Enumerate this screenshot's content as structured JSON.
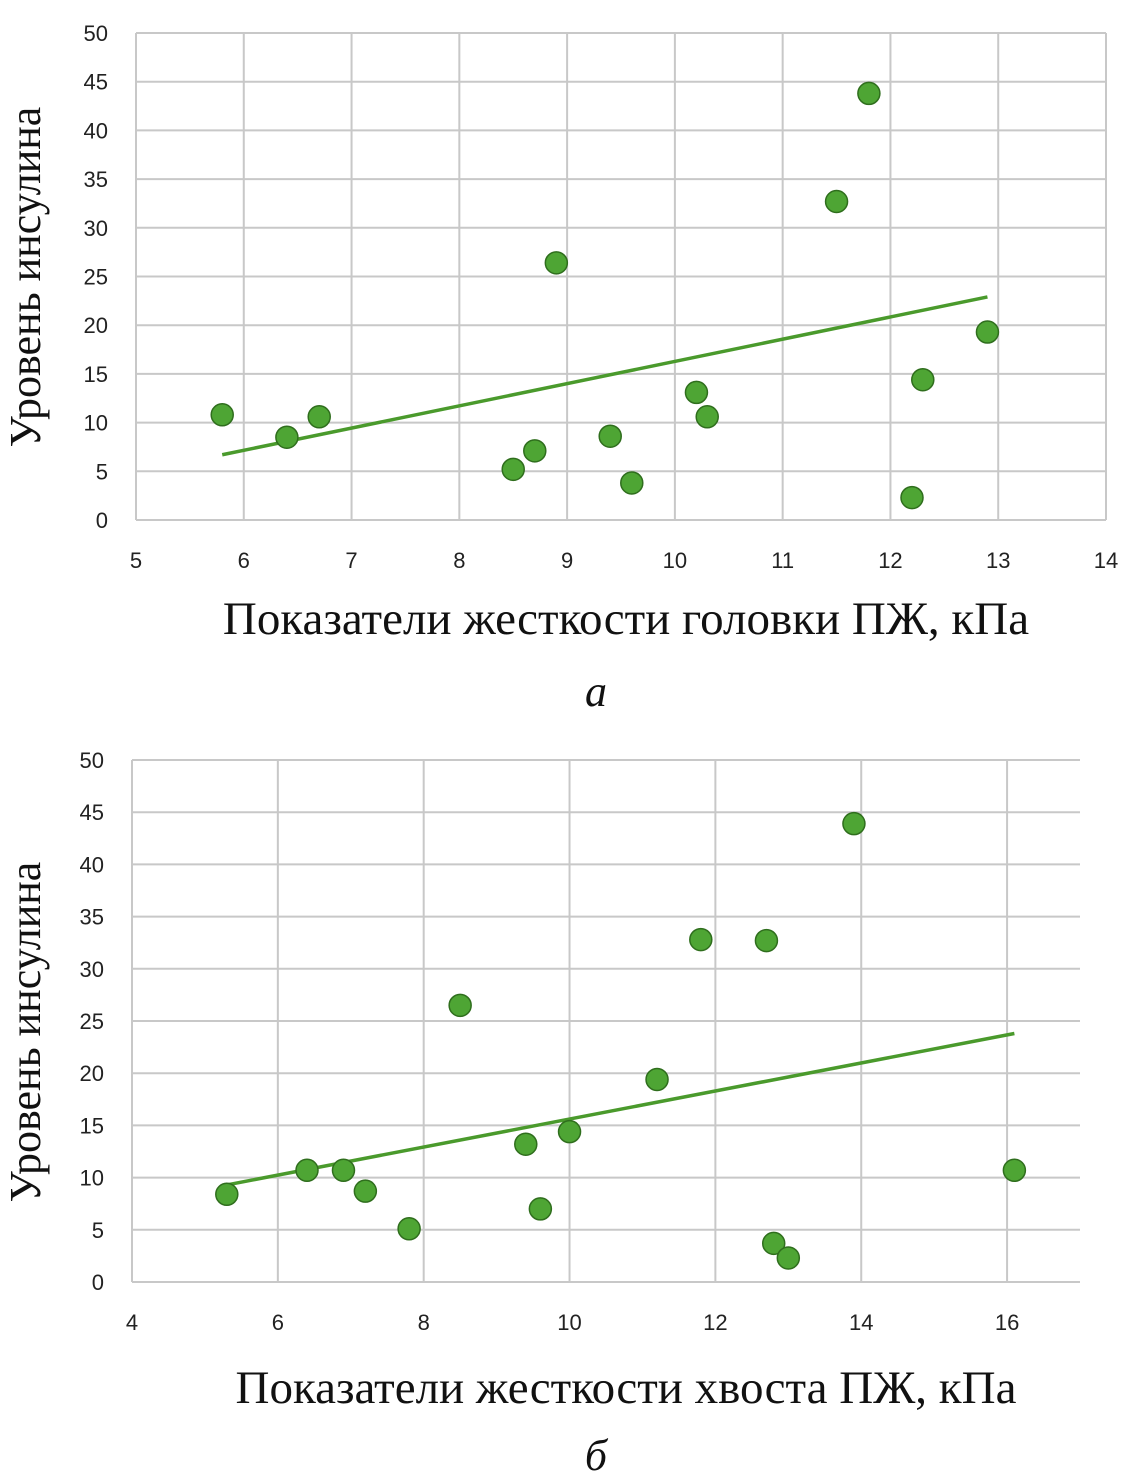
{
  "colors": {
    "point": "#4ea534",
    "point_edge": "#2f6e1d",
    "trend": "#4a9a2c",
    "grid": "#c8c8c8"
  },
  "chart_data": [
    {
      "type": "scatter",
      "panel_label": "a",
      "xlabel": "Показатели жесткости головки ПЖ, кПа",
      "ylabel": "Уровень инсулина",
      "xlim": [
        5,
        14
      ],
      "ylim": [
        0,
        50
      ],
      "xticks": [
        5,
        6,
        7,
        8,
        9,
        10,
        11,
        12,
        13,
        14
      ],
      "yticks": [
        0,
        5,
        10,
        15,
        20,
        25,
        30,
        35,
        40,
        45,
        50
      ],
      "grid": true,
      "points": [
        {
          "x": 5.8,
          "y": 10.8
        },
        {
          "x": 6.4,
          "y": 8.5
        },
        {
          "x": 6.7,
          "y": 10.6
        },
        {
          "x": 8.5,
          "y": 5.2
        },
        {
          "x": 8.7,
          "y": 7.1
        },
        {
          "x": 8.9,
          "y": 26.4
        },
        {
          "x": 9.4,
          "y": 8.6
        },
        {
          "x": 9.6,
          "y": 3.8
        },
        {
          "x": 10.2,
          "y": 13.1
        },
        {
          "x": 10.3,
          "y": 10.6
        },
        {
          "x": 11.5,
          "y": 32.7
        },
        {
          "x": 11.8,
          "y": 43.8
        },
        {
          "x": 12.2,
          "y": 2.3
        },
        {
          "x": 12.3,
          "y": 14.4
        },
        {
          "x": 12.9,
          "y": 19.3
        }
      ],
      "trendline": {
        "x": [
          5.8,
          12.9
        ],
        "y": [
          6.7,
          22.9
        ]
      }
    },
    {
      "type": "scatter",
      "panel_label": "б",
      "xlabel": "Показатели жесткости хвоста ПЖ, кПа",
      "ylabel": "Уровень инсулина",
      "xlim": [
        4,
        17
      ],
      "ylim": [
        0,
        50
      ],
      "xticks": [
        4,
        6,
        8,
        10,
        12,
        14,
        16
      ],
      "yticks": [
        0,
        5,
        10,
        15,
        20,
        25,
        30,
        35,
        40,
        45,
        50
      ],
      "grid": true,
      "points": [
        {
          "x": 5.3,
          "y": 8.4
        },
        {
          "x": 6.4,
          "y": 10.7
        },
        {
          "x": 6.9,
          "y": 10.7
        },
        {
          "x": 7.2,
          "y": 8.7
        },
        {
          "x": 7.8,
          "y": 5.1
        },
        {
          "x": 8.5,
          "y": 26.5
        },
        {
          "x": 9.4,
          "y": 13.2
        },
        {
          "x": 9.6,
          "y": 7.0
        },
        {
          "x": 10.0,
          "y": 14.4
        },
        {
          "x": 11.2,
          "y": 19.4
        },
        {
          "x": 11.8,
          "y": 32.8
        },
        {
          "x": 12.7,
          "y": 32.7
        },
        {
          "x": 12.8,
          "y": 3.7
        },
        {
          "x": 13.0,
          "y": 2.3
        },
        {
          "x": 13.9,
          "y": 43.9
        },
        {
          "x": 16.1,
          "y": 10.7
        }
      ],
      "trendline": {
        "x": [
          5.3,
          16.1
        ],
        "y": [
          9.3,
          23.8
        ]
      }
    }
  ]
}
